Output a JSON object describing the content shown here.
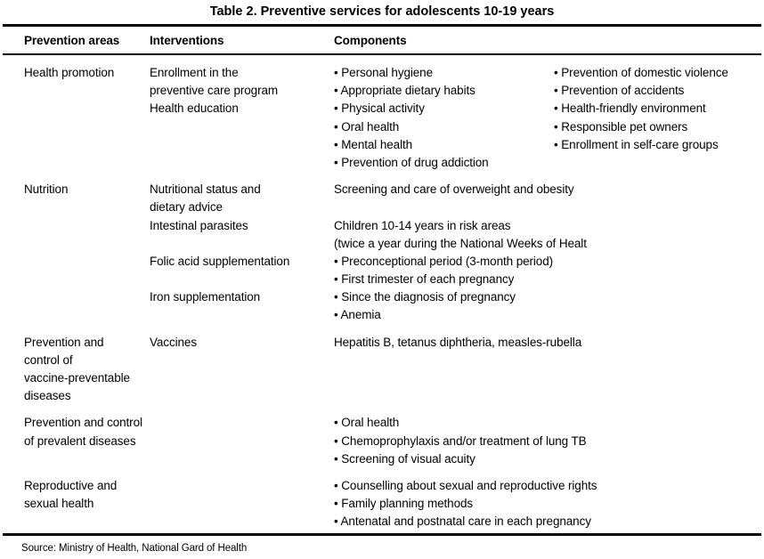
{
  "colors": {
    "ink": "#000000",
    "paper": "#ffffff"
  },
  "title": "Table 2. Preventive services for adolescents 10-19 years",
  "header": {
    "prevention_areas": "Prevention areas",
    "interventions": "Interventions",
    "components": "Components"
  },
  "rows": {
    "health_promotion": {
      "area": [
        "Health promotion"
      ],
      "interventions": [
        "Enrollment in the",
        "preventive care program",
        "Health education"
      ],
      "components_left": [
        "• Personal hygiene",
        "• Appropriate dietary habits",
        "• Physical activity",
        "• Oral health",
        "• Mental health",
        "• Prevention of drug addiction"
      ],
      "components_right": [
        "• Prevention of domestic violence",
        "• Prevention of accidents",
        "• Health-friendly environment",
        "• Responsible pet owners",
        "• Enrollment in self-care groups"
      ]
    },
    "nutrition": {
      "area": [
        "Nutrition"
      ],
      "interventions": [
        "Nutritional status and",
        "dietary advice",
        "Intestinal parasites",
        "",
        "Folic acid supplementation",
        "",
        "Iron supplementation"
      ],
      "components": [
        "Screening and care of overweight and obesity",
        "",
        "Children 10-14 years in risk areas",
        "(twice a year during the National Weeks of Healt",
        "• Preconceptional period (3-month period)",
        "• First trimester of each pregnancy",
        "• Since the diagnosis of pregnancy",
        "• Anemia"
      ]
    },
    "vaccine_preventable": {
      "area": [
        "Prevention and",
        "control of",
        "vaccine-preventable",
        "diseases"
      ],
      "interventions": [
        "Vaccines"
      ],
      "components": [
        "Hepatitis B, tetanus diphtheria, measles-rubella"
      ]
    },
    "prevalent_diseases": {
      "area": [
        "Prevention and control",
        "of prevalent diseases"
      ],
      "interventions": [],
      "components": [
        "• Oral health",
        "• Chemoprophylaxis and/or treatment of lung TB",
        "• Screening of visual acuity"
      ]
    },
    "reproductive_sexual": {
      "area": [
        "Reproductive and",
        "sexual health"
      ],
      "interventions": [],
      "components": [
        "• Counselling about sexual and reproductive rights",
        "• Family planning methods",
        "• Antenatal and postnatal care in each pregnancy"
      ]
    }
  },
  "source": "Source: Ministry of Health, National Gard of Health"
}
